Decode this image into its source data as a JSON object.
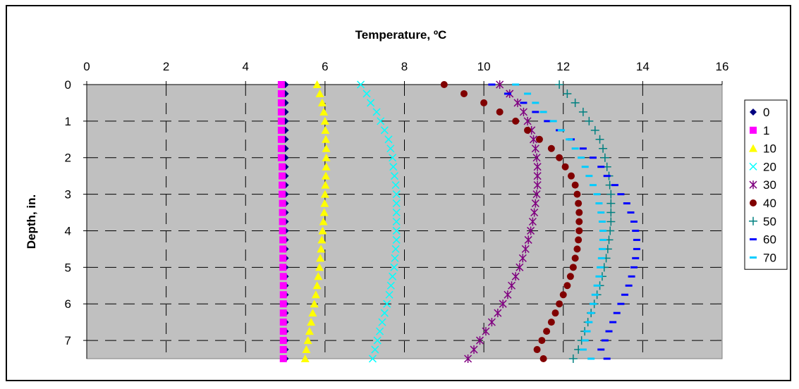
{
  "chart_data": {
    "type": "scatter",
    "xlabel": "Temperature, ºC",
    "ylabel": "Depth, in.",
    "xlim": [
      0,
      16
    ],
    "ylim": [
      0,
      7.5
    ],
    "x_axis_position": "top",
    "y_axis_inverted": true,
    "x_ticks": [
      "0",
      "2",
      "4",
      "6",
      "8",
      "10",
      "12",
      "14",
      "16"
    ],
    "y_ticks": [
      "0",
      "1",
      "2",
      "3",
      "4",
      "5",
      "6",
      "7"
    ],
    "grid": true,
    "plot_background": "#c0c0c0",
    "legend_position": "right",
    "depths": [
      0,
      0.25,
      0.5,
      0.75,
      1,
      1.25,
      1.5,
      1.75,
      2,
      2.25,
      2.5,
      2.75,
      3,
      3.25,
      3.5,
      3.75,
      4,
      4.25,
      4.5,
      4.75,
      5,
      5.25,
      5.5,
      5.75,
      6,
      6.25,
      6.5,
      6.75,
      7,
      7.25,
      7.5
    ],
    "series": [
      {
        "name": "0",
        "marker": "diamond",
        "color": "#000080",
        "values": [
          5.0,
          5.0,
          5.0,
          5.0,
          5.0,
          5.0,
          5.0,
          5.0,
          5.0,
          5.0,
          5.0,
          5.0,
          5.0,
          5.0,
          5.0,
          5.0,
          5.0,
          5.0,
          5.0,
          5.0,
          5.0,
          5.0,
          5.0,
          5.0,
          5.0,
          5.0,
          5.0,
          5.0,
          5.0,
          5.0,
          5.0
        ]
      },
      {
        "name": "1",
        "marker": "square",
        "color": "#ff00ff",
        "values": [
          4.9,
          4.9,
          4.9,
          4.9,
          4.9,
          4.9,
          4.9,
          4.9,
          4.9,
          4.92,
          4.92,
          4.92,
          4.92,
          4.93,
          4.93,
          4.93,
          4.93,
          4.94,
          4.94,
          4.94,
          4.94,
          4.95,
          4.95,
          4.95,
          4.95,
          4.95,
          4.95,
          4.95,
          4.95,
          4.95,
          4.95
        ]
      },
      {
        "name": "10",
        "marker": "triangle",
        "color": "#ffff00",
        "values": [
          5.8,
          5.87,
          5.93,
          5.97,
          6.0,
          6.01,
          6.02,
          6.03,
          6.03,
          6.03,
          6.02,
          6.01,
          6.0,
          5.99,
          5.98,
          5.96,
          5.94,
          5.92,
          5.9,
          5.88,
          5.86,
          5.83,
          5.8,
          5.77,
          5.73,
          5.69,
          5.65,
          5.61,
          5.57,
          5.53,
          5.5
        ]
      },
      {
        "name": "20",
        "marker": "x",
        "color": "#00ffff",
        "values": [
          6.9,
          7.05,
          7.15,
          7.3,
          7.4,
          7.5,
          7.6,
          7.65,
          7.7,
          7.72,
          7.75,
          7.78,
          7.8,
          7.8,
          7.8,
          7.8,
          7.8,
          7.8,
          7.78,
          7.76,
          7.74,
          7.7,
          7.66,
          7.62,
          7.56,
          7.5,
          7.44,
          7.38,
          7.32,
          7.26,
          7.2
        ]
      },
      {
        "name": "30",
        "marker": "star",
        "color": "#800080",
        "values": [
          10.4,
          10.65,
          10.85,
          11.0,
          11.1,
          11.2,
          11.25,
          11.3,
          11.33,
          11.35,
          11.35,
          11.35,
          11.33,
          11.3,
          11.27,
          11.23,
          11.18,
          11.12,
          11.05,
          10.98,
          10.9,
          10.8,
          10.7,
          10.6,
          10.48,
          10.35,
          10.2,
          10.05,
          9.9,
          9.75,
          9.6
        ]
      },
      {
        "name": "40",
        "marker": "circle",
        "color": "#800000",
        "values": [
          9.0,
          9.5,
          10.0,
          10.4,
          10.8,
          11.1,
          11.4,
          11.7,
          11.9,
          12.05,
          12.2,
          12.3,
          12.35,
          12.38,
          12.4,
          12.4,
          12.4,
          12.38,
          12.35,
          12.3,
          12.25,
          12.18,
          12.1,
          12.0,
          11.9,
          11.8,
          11.7,
          11.58,
          11.46,
          11.34,
          11.5
        ]
      },
      {
        "name": "50",
        "marker": "plus",
        "color": "#008080",
        "values": [
          11.9,
          12.1,
          12.3,
          12.5,
          12.65,
          12.8,
          12.92,
          13.0,
          13.05,
          13.1,
          13.15,
          13.17,
          13.2,
          13.2,
          13.2,
          13.2,
          13.18,
          13.15,
          13.12,
          13.08,
          13.03,
          12.98,
          12.92,
          12.85,
          12.78,
          12.7,
          12.62,
          12.54,
          12.46,
          12.38,
          12.25
        ]
      },
      {
        "name": "60",
        "marker": "dash",
        "color": "#0000ff",
        "values": [
          10.2,
          10.6,
          11.0,
          11.3,
          11.6,
          11.9,
          12.2,
          12.5,
          12.75,
          12.95,
          13.1,
          13.3,
          13.45,
          13.6,
          13.7,
          13.78,
          13.82,
          13.85,
          13.85,
          13.82,
          13.78,
          13.72,
          13.65,
          13.55,
          13.45,
          13.35,
          13.25,
          13.15,
          13.05,
          12.95,
          13.1
        ]
      },
      {
        "name": "70",
        "marker": "dash",
        "color": "#00ccff",
        "values": [
          10.8,
          11.1,
          11.3,
          11.5,
          11.75,
          11.95,
          12.15,
          12.3,
          12.45,
          12.55,
          12.65,
          12.75,
          12.85,
          12.9,
          12.95,
          12.98,
          13.0,
          13.0,
          12.98,
          12.96,
          12.93,
          12.9,
          12.85,
          12.8,
          12.75,
          12.7,
          12.65,
          12.6,
          12.55,
          12.5,
          12.7
        ]
      }
    ]
  }
}
